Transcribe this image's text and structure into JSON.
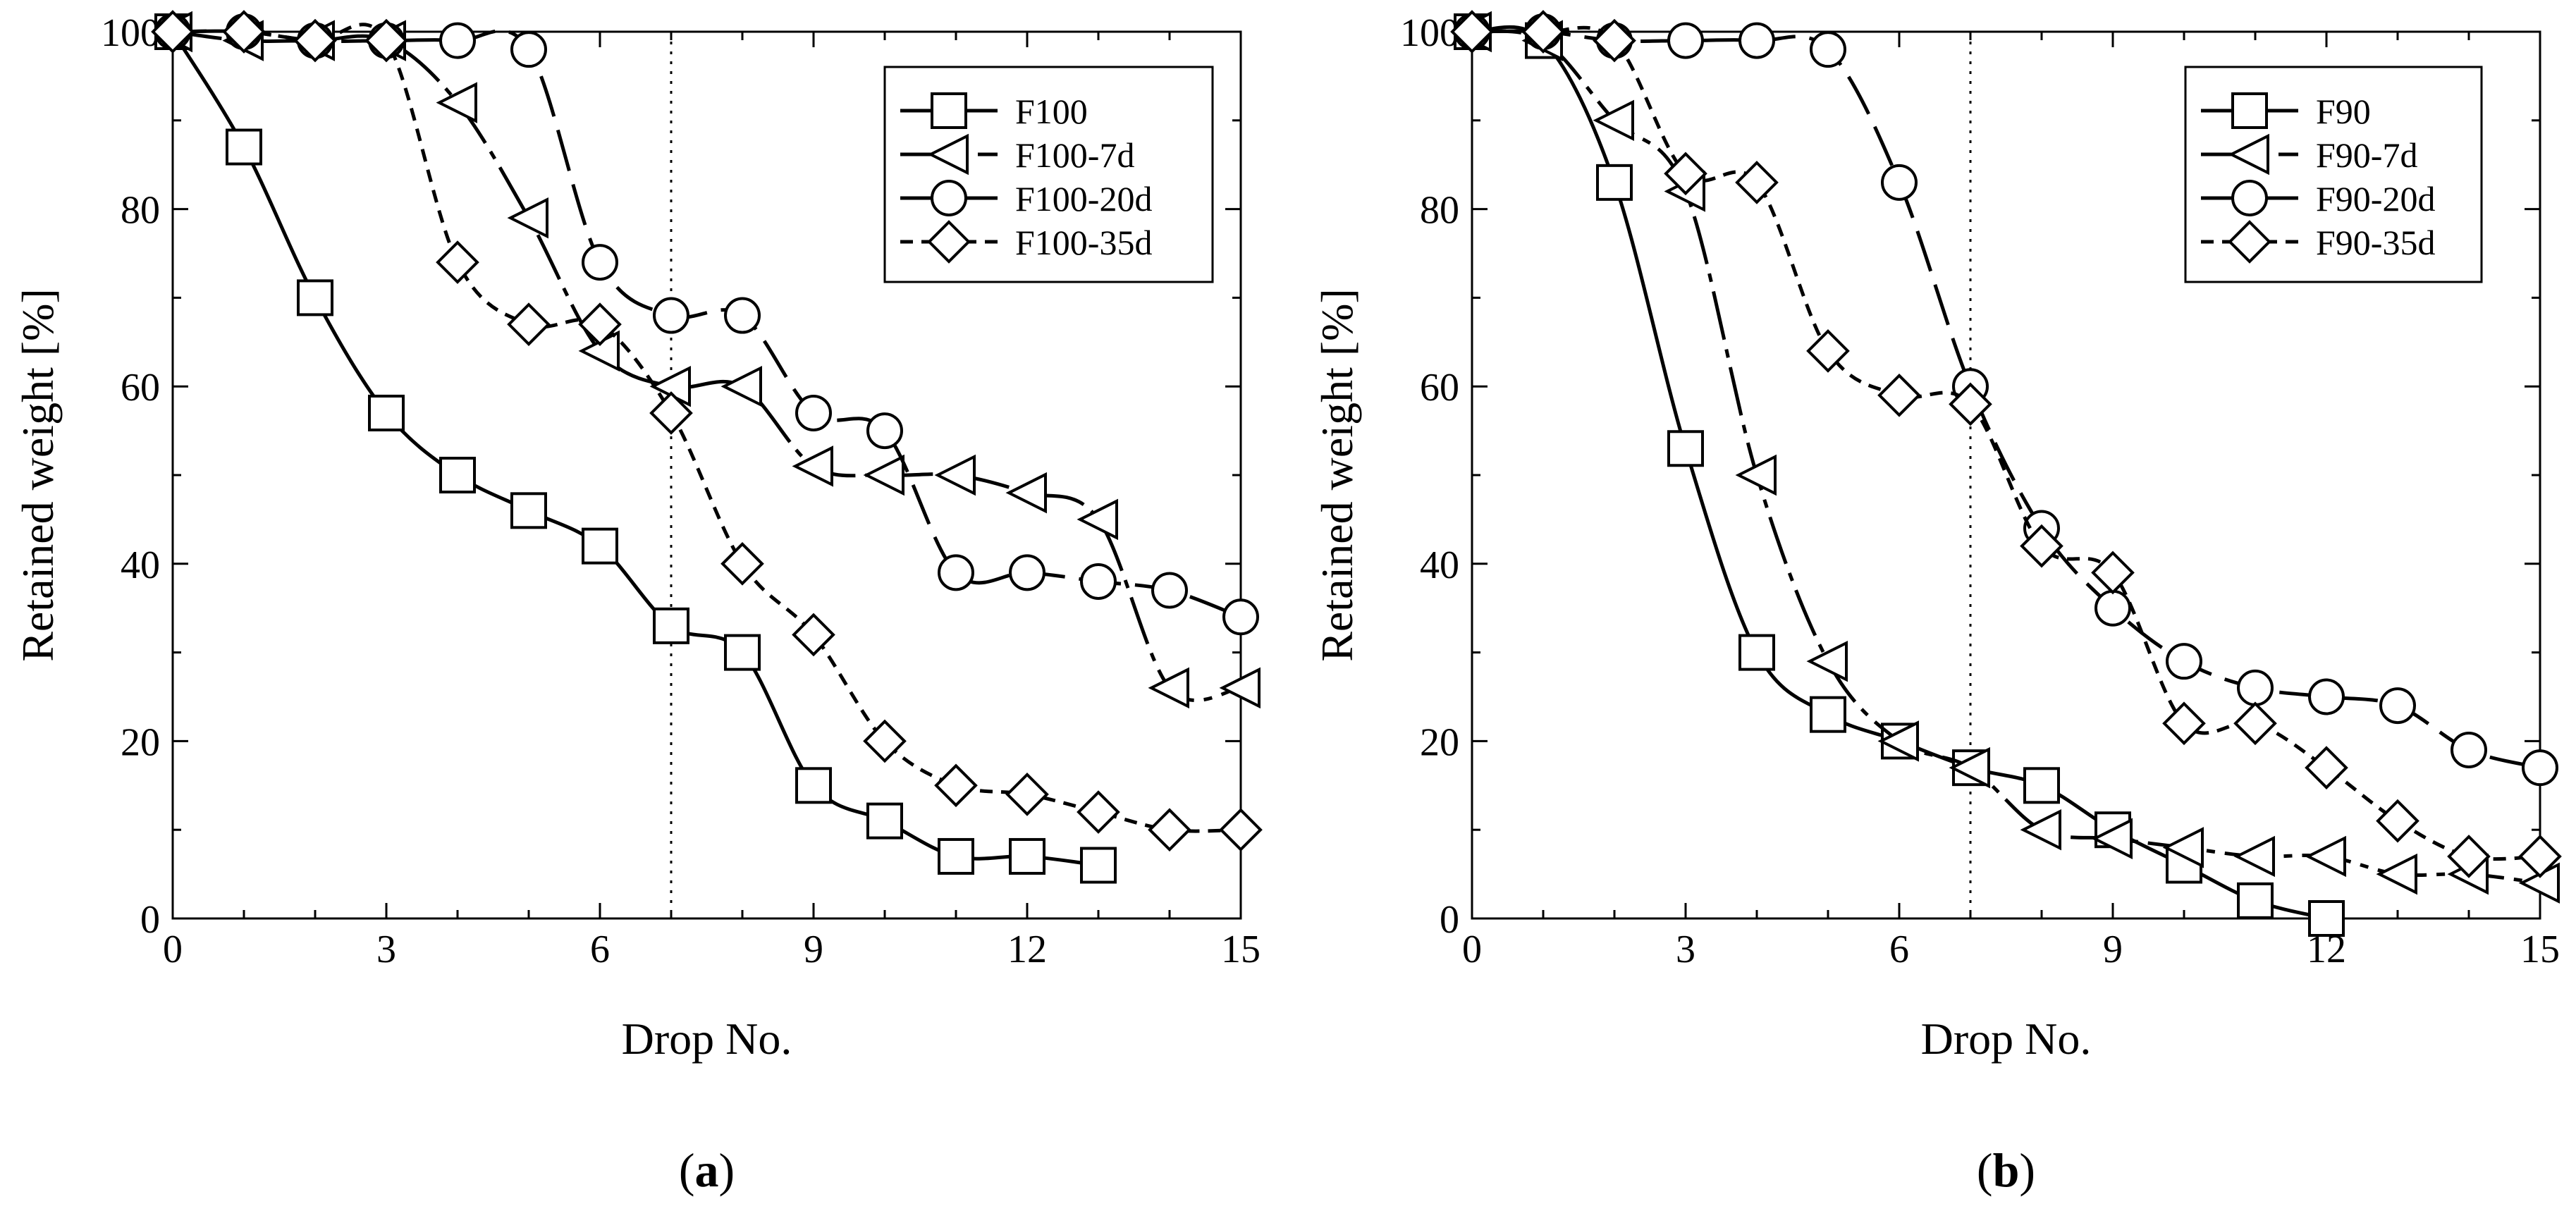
{
  "chart_data": [
    {
      "type": "line",
      "panel_label": "a",
      "xlabel": "Drop No.",
      "ylabel": "Retained weight [%]",
      "xlim": [
        0,
        15
      ],
      "ylim": [
        0,
        100
      ],
      "x_ticks": [
        0,
        3,
        6,
        9,
        12,
        15
      ],
      "y_ticks": [
        0,
        20,
        40,
        60,
        80,
        100
      ],
      "reference_line_x": 7,
      "legend_position": "top-right",
      "series": [
        {
          "name": "F100",
          "marker": "square",
          "dash": "solid",
          "x": [
            0,
            1,
            2,
            3,
            4,
            5,
            6,
            7,
            8,
            9,
            10,
            11,
            12,
            13
          ],
          "y": [
            100,
            87,
            70,
            57,
            50,
            46,
            42,
            33,
            30,
            15,
            11,
            7,
            7,
            6
          ]
        },
        {
          "name": "F100-7d",
          "marker": "triangle-left",
          "dash": "dashdot",
          "x": [
            0,
            1,
            2,
            3,
            4,
            5,
            6,
            7,
            8,
            9,
            10,
            11,
            12,
            13,
            14,
            15
          ],
          "y": [
            100,
            99,
            99,
            99,
            92,
            79,
            64,
            60,
            60,
            51,
            50,
            50,
            48,
            45,
            26,
            26
          ]
        },
        {
          "name": "F100-20d",
          "marker": "circle",
          "dash": "longdash",
          "x": [
            0,
            1,
            2,
            3,
            4,
            5,
            6,
            7,
            8,
            9,
            10,
            11,
            12,
            13,
            14,
            15
          ],
          "y": [
            100,
            100,
            99,
            99,
            99,
            98,
            74,
            68,
            68,
            57,
            55,
            39,
            39,
            38,
            37,
            34
          ]
        },
        {
          "name": "F100-35d",
          "marker": "diamond",
          "dash": "shortdash",
          "x": [
            0,
            1,
            2,
            3,
            4,
            5,
            6,
            7,
            8,
            9,
            10,
            11,
            12,
            13,
            14,
            15
          ],
          "y": [
            100,
            100,
            99,
            99,
            74,
            67,
            67,
            57,
            40,
            32,
            20,
            15,
            14,
            12,
            10,
            10
          ]
        }
      ]
    },
    {
      "type": "line",
      "panel_label": "b",
      "xlabel": "Drop No.",
      "ylabel": "Retained weight [%]",
      "xlim": [
        0,
        15
      ],
      "ylim": [
        0,
        100
      ],
      "x_ticks": [
        0,
        3,
        6,
        9,
        12,
        15
      ],
      "y_ticks": [
        0,
        20,
        40,
        60,
        80,
        100
      ],
      "reference_line_x": 7,
      "legend_position": "top-right",
      "series": [
        {
          "name": "F90",
          "marker": "square",
          "dash": "solid",
          "x": [
            0,
            1,
            2,
            3,
            4,
            5,
            6,
            7,
            8,
            9,
            10,
            11,
            12
          ],
          "y": [
            100,
            99,
            83,
            53,
            30,
            23,
            20,
            17,
            15,
            10,
            6,
            2,
            0
          ]
        },
        {
          "name": "F90-7d",
          "marker": "triangle-left",
          "dash": "dashdot",
          "x": [
            0,
            1,
            2,
            3,
            4,
            5,
            6,
            7,
            8,
            9,
            10,
            11,
            12,
            13,
            14,
            15
          ],
          "y": [
            100,
            99,
            90,
            82,
            50,
            29,
            20,
            17,
            10,
            9,
            8,
            7,
            7,
            5,
            5,
            4
          ]
        },
        {
          "name": "F90-20d",
          "marker": "circle",
          "dash": "longdash",
          "x": [
            0,
            1,
            2,
            3,
            4,
            5,
            6,
            7,
            8,
            9,
            10,
            11,
            12,
            13,
            14,
            15
          ],
          "y": [
            100,
            100,
            99,
            99,
            99,
            98,
            83,
            60,
            44,
            35,
            29,
            26,
            25,
            24,
            19,
            17
          ]
        },
        {
          "name": "F90-35d",
          "marker": "diamond",
          "dash": "shortdash",
          "x": [
            0,
            1,
            2,
            3,
            4,
            5,
            6,
            7,
            8,
            9,
            10,
            11,
            12,
            13,
            14,
            15
          ],
          "y": [
            100,
            100,
            99,
            84,
            83,
            64,
            59,
            58,
            42,
            39,
            22,
            22,
            17,
            11,
            7,
            7
          ]
        }
      ]
    }
  ]
}
